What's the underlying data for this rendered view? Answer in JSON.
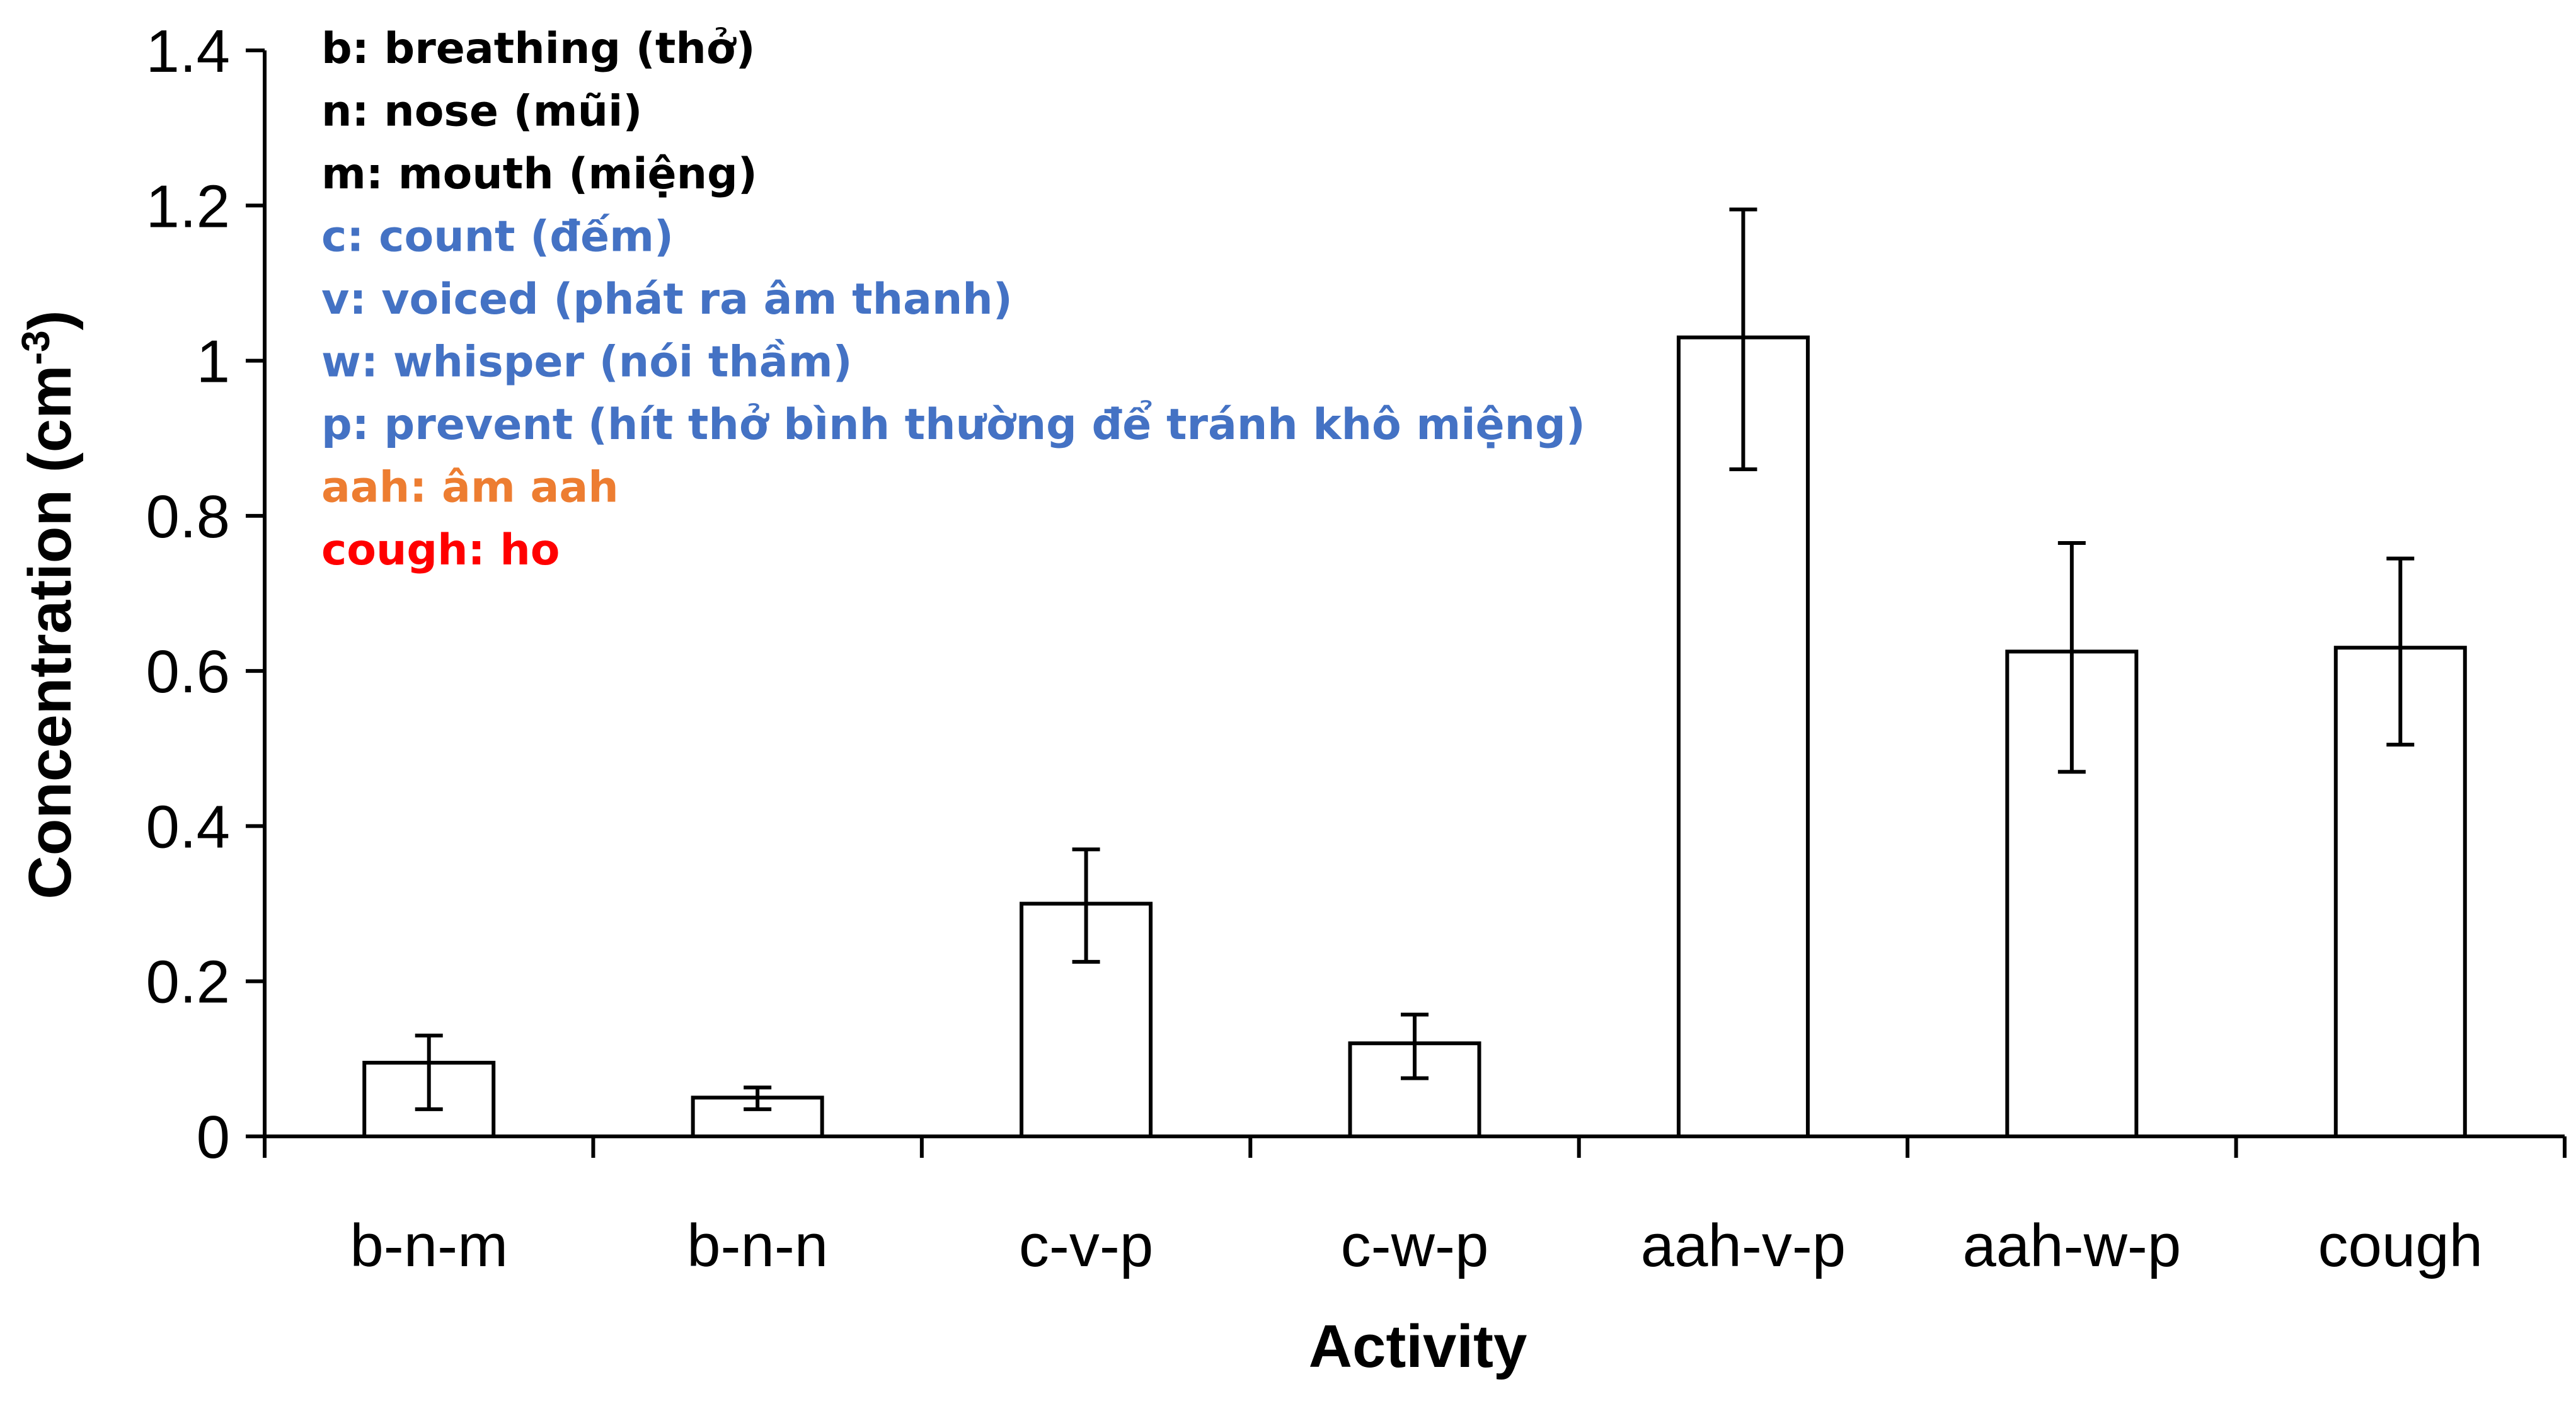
{
  "chart_data": {
    "type": "bar",
    "title": "",
    "xlabel": "Activity",
    "ylabel": "Concentration  (cm",
    "ylabel_superscript": "-3",
    "ylabel_suffix": ")",
    "categories": [
      "b-n-m",
      "b-n-n",
      "c-v-p",
      "c-w-p",
      "aah-v-p",
      "aah-w-p",
      "cough"
    ],
    "values": [
      0.095,
      0.05,
      0.3,
      0.12,
      1.03,
      0.625,
      0.63
    ],
    "error_low": [
      0.035,
      0.035,
      0.225,
      0.075,
      0.86,
      0.47,
      0.505
    ],
    "error_high": [
      0.13,
      0.063,
      0.37,
      0.157,
      1.195,
      0.765,
      0.745
    ],
    "ylim": [
      0,
      1.4
    ],
    "yticks": [
      0,
      0.2,
      0.4,
      0.6,
      0.8,
      1,
      1.2,
      1.4
    ],
    "ytick_labels": [
      "0",
      "0.2",
      "0.4",
      "0.6",
      "0.8",
      "1",
      "1.2",
      "1.4"
    ],
    "grid": false,
    "bar_fill": "#ffffff",
    "bar_stroke": "#000000"
  },
  "annotations": [
    {
      "text": "b: breathing (thở)",
      "color": "#000000"
    },
    {
      "text": "n: nose (mũi)",
      "color": "#000000"
    },
    {
      "text": "m: mouth (miệng)",
      "color": "#000000"
    },
    {
      "text": "c: count (đếm)",
      "color": "#4472c4"
    },
    {
      "text": "v: voiced (phát ra âm thanh)",
      "color": "#4472c4"
    },
    {
      "text": "w: whisper (nói thầm)",
      "color": "#4472c4"
    },
    {
      "text": "p: prevent (hít thở bình thường để tránh khô miệng)",
      "color": "#4472c4"
    },
    {
      "text": "aah: âm aah",
      "color": "#ed7d31"
    },
    {
      "text": "cough: ho",
      "color": "#ff0000"
    }
  ]
}
